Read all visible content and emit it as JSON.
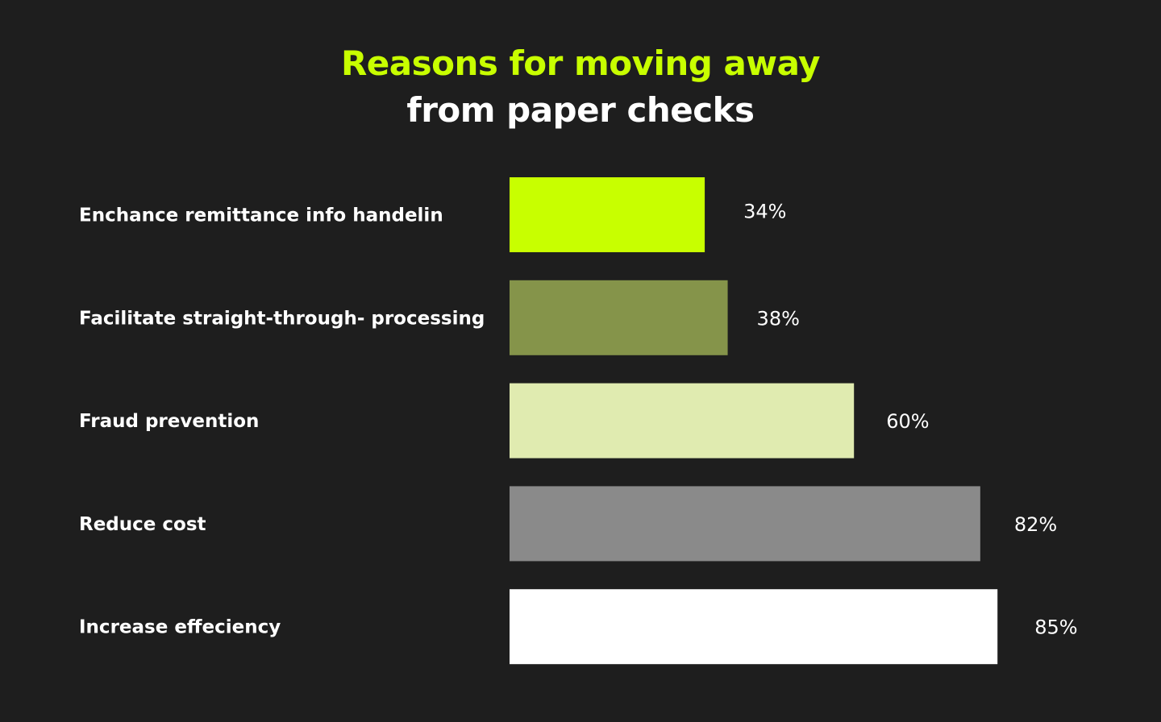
{
  "chart_data": {
    "type": "bar",
    "orientation": "horizontal",
    "title_line_1": "Reasons for moving away",
    "title_line_2": "from paper checks",
    "categories": [
      "Enchance remittance info handelin",
      "Facilitate straight-through- processing",
      "Fraud prevention",
      "Reduce cost",
      "Increase effeciency"
    ],
    "values": [
      34,
      38,
      60,
      82,
      85
    ],
    "value_labels": [
      "34%",
      "38%",
      "60%",
      "82%",
      "85%"
    ],
    "bar_colors": [
      "#c8ff00",
      "#85944a",
      "#e0ebb0",
      "#8a8a8a",
      "#ffffff"
    ],
    "xlim": [
      0,
      100
    ],
    "grid": false,
    "legend": "none"
  },
  "colors": {
    "background": "#1e1e1e",
    "accent": "#c8ff00",
    "text": "#ffffff"
  }
}
